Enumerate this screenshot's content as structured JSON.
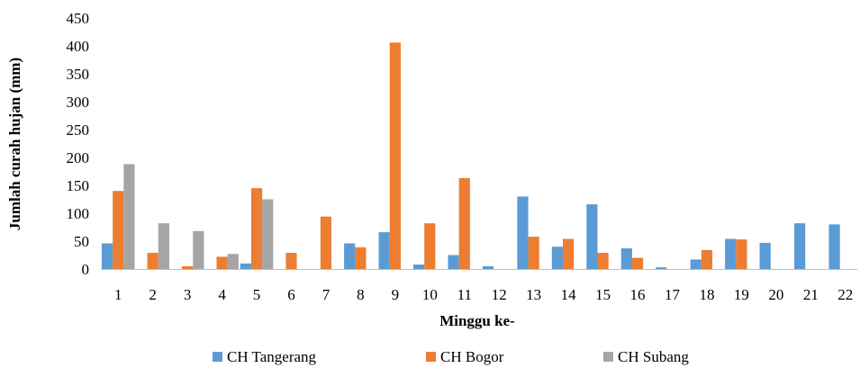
{
  "chart_data": {
    "type": "bar",
    "title": "",
    "xlabel": "Minggu ke-",
    "ylabel": "Jumlah curah hujan (mm)",
    "ylim": [
      0,
      450
    ],
    "yticks": [
      0,
      50,
      100,
      150,
      200,
      250,
      300,
      350,
      400,
      450
    ],
    "grid": false,
    "legend_position": "bottom",
    "categories": [
      "1",
      "2",
      "3",
      "4",
      "5",
      "6",
      "7",
      "8",
      "9",
      "10",
      "11",
      "12",
      "13",
      "14",
      "15",
      "16",
      "17",
      "18",
      "19",
      "20",
      "21",
      "22"
    ],
    "series": [
      {
        "name": "CH Tangerang",
        "color": "#5b9bd5",
        "values": [
          46,
          0,
          0,
          0,
          10,
          0,
          0,
          46,
          66,
          8,
          25,
          5,
          130,
          40,
          116,
          37,
          3,
          17,
          54,
          47,
          82,
          80
        ]
      },
      {
        "name": "CH Bogor",
        "color": "#ed7d31",
        "values": [
          140,
          29,
          5,
          22,
          145,
          29,
          94,
          39,
          406,
          82,
          163,
          0,
          58,
          54,
          29,
          20,
          0,
          34,
          53,
          0,
          0,
          0
        ]
      },
      {
        "name": "CH Subang",
        "color": "#a5a5a5",
        "values": [
          188,
          82,
          68,
          27,
          125,
          0,
          0,
          0,
          0,
          0,
          0,
          0,
          0,
          0,
          0,
          0,
          0,
          0,
          0,
          0,
          0,
          0
        ]
      }
    ]
  }
}
